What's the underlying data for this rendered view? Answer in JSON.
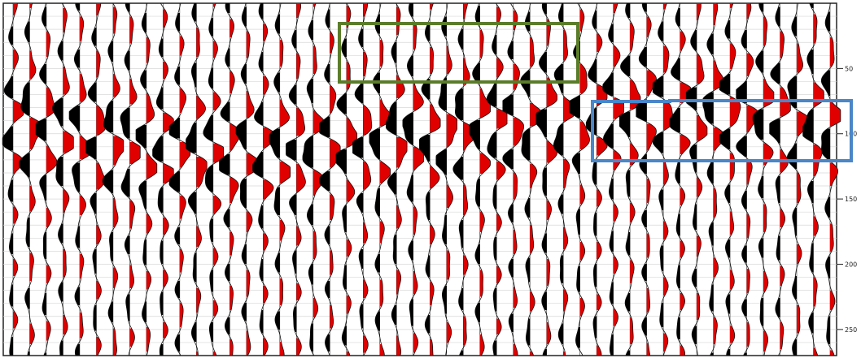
{
  "chart_data": {
    "type": "wiggle-seismic",
    "title": "",
    "xlabel": "",
    "ylabel": "",
    "y_axis": {
      "position": "right",
      "tick_labels": [
        "50",
        "100",
        "150",
        "200",
        "250"
      ],
      "tick_values": [
        50,
        100,
        150,
        200,
        250
      ],
      "label_note": "tick labels partially cut off at the right edge"
    },
    "fill_polarity_colors": {
      "positive": "#e00000",
      "negative": "#000000"
    },
    "highlight_boxes": [
      {
        "name": "green-box",
        "color": "#5a7d2a"
      },
      {
        "name": "blue-box",
        "color": "#4a86c8"
      }
    ],
    "trace_count": 50,
    "grid": true
  }
}
